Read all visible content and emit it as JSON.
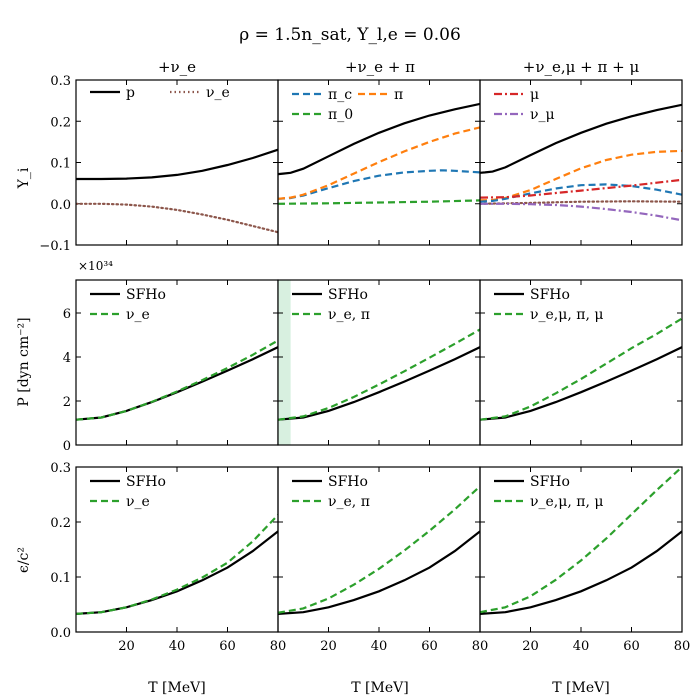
{
  "figure": {
    "title": "ρ = 1.5n_sat, Y_l,e = 0.06",
    "columns": [
      "+ν_e",
      "+ν_e + π",
      "+ν_e,μ + π + μ"
    ],
    "x_label": "T [MeV]",
    "row_labels": [
      "Y_i",
      "P [dyn cm⁻²]",
      "ϵ/c²"
    ],
    "pressure_multiplier": "×10³⁴",
    "highlight_band_T": [
      0,
      5
    ],
    "colors": {
      "black": "#000000",
      "orange": "#ff7f0e",
      "blue": "#1f77b4",
      "green": "#2ca02c",
      "red": "#d62728",
      "purple": "#9467bd",
      "brown": "#8c564b",
      "band": "#d8f0e0"
    }
  },
  "chart_data": [
    {
      "type": "line",
      "panel": "Y_i | +ν_e",
      "xlim": [
        0,
        80
      ],
      "ylim": [
        -0.1,
        0.3
      ],
      "yticks": [
        "−0.1",
        "0.0",
        "0.1",
        "0.2",
        "0.3"
      ],
      "xticks": [
        "20",
        "40",
        "60",
        "80"
      ],
      "legend": "top-left",
      "series": [
        {
          "name": "p",
          "color": "#000000",
          "dash": "solid",
          "x": [
            0,
            10,
            20,
            30,
            40,
            50,
            60,
            70,
            80
          ],
          "y": [
            0.06,
            0.06,
            0.061,
            0.064,
            0.07,
            0.08,
            0.094,
            0.111,
            0.131
          ]
        },
        {
          "name": "ν_e",
          "color": "#8c564b",
          "dash": "dotted",
          "x": [
            0,
            10,
            20,
            30,
            40,
            50,
            60,
            70,
            80
          ],
          "y": [
            0.0,
            0.0,
            -0.002,
            -0.007,
            -0.015,
            -0.026,
            -0.039,
            -0.054,
            -0.069
          ]
        }
      ]
    },
    {
      "type": "line",
      "panel": "Y_i | +ν_e + π",
      "xlim": [
        0,
        80
      ],
      "ylim": [
        -0.1,
        0.3
      ],
      "yticks": [],
      "xticks": [
        "20",
        "40",
        "60",
        "80"
      ],
      "legend": "top-left",
      "series": [
        {
          "name": "",
          "color": "#000000",
          "dash": "solid",
          "x": [
            0,
            2,
            5,
            10,
            20,
            30,
            40,
            50,
            60,
            70,
            80
          ],
          "y": [
            0.072,
            0.073,
            0.075,
            0.085,
            0.115,
            0.145,
            0.172,
            0.195,
            0.214,
            0.229,
            0.242
          ]
        },
        {
          "name": "π_c",
          "color": "#1f77b4",
          "dash": "dashed",
          "x": [
            0,
            5,
            10,
            20,
            30,
            40,
            50,
            60,
            65,
            70,
            80
          ],
          "y": [
            0.012,
            0.014,
            0.02,
            0.038,
            0.055,
            0.068,
            0.076,
            0.08,
            0.081,
            0.08,
            0.076
          ]
        },
        {
          "name": "π",
          "color": "#ff7f0e",
          "dash": "dashed",
          "x": [
            0,
            5,
            10,
            20,
            30,
            40,
            50,
            60,
            70,
            80
          ],
          "y": [
            0.012,
            0.015,
            0.022,
            0.045,
            0.073,
            0.101,
            0.127,
            0.15,
            0.17,
            0.185
          ]
        },
        {
          "name": "π_0",
          "color": "#2ca02c",
          "dash": "dashed",
          "x": [
            0,
            20,
            40,
            60,
            80
          ],
          "y": [
            0.0,
            0.001,
            0.003,
            0.005,
            0.008
          ]
        }
      ]
    },
    {
      "type": "line",
      "panel": "Y_i | +ν_e,μ + π + μ",
      "xlim": [
        0,
        80
      ],
      "ylim": [
        -0.1,
        0.3
      ],
      "yticks": [],
      "xticks": [
        "20",
        "40",
        "60",
        "80"
      ],
      "legend": "top-left",
      "series": [
        {
          "name": "",
          "color": "#000000",
          "dash": "solid",
          "x": [
            0,
            2,
            5,
            10,
            20,
            30,
            40,
            50,
            60,
            70,
            80
          ],
          "y": [
            0.075,
            0.076,
            0.078,
            0.088,
            0.118,
            0.147,
            0.172,
            0.194,
            0.212,
            0.227,
            0.24
          ]
        },
        {
          "name": "",
          "color": "#ff7f0e",
          "dash": "dashed",
          "x": [
            0,
            5,
            10,
            20,
            30,
            40,
            50,
            60,
            70,
            80
          ],
          "y": [
            0.008,
            0.009,
            0.014,
            0.033,
            0.06,
            0.086,
            0.106,
            0.119,
            0.126,
            0.128
          ]
        },
        {
          "name": "",
          "color": "#1f77b4",
          "dash": "dashed",
          "x": [
            0,
            5,
            10,
            20,
            30,
            40,
            50,
            60,
            70,
            80
          ],
          "y": [
            0.005,
            0.007,
            0.012,
            0.025,
            0.037,
            0.045,
            0.047,
            0.043,
            0.034,
            0.022
          ]
        },
        {
          "name": "μ",
          "color": "#d62728",
          "dash": "dashdot",
          "x": [
            0,
            10,
            20,
            30,
            40,
            50,
            60,
            70,
            80
          ],
          "y": [
            0.015,
            0.016,
            0.02,
            0.026,
            0.032,
            0.038,
            0.044,
            0.051,
            0.058
          ]
        },
        {
          "name": "",
          "color": "#8c564b",
          "dash": "dotted",
          "x": [
            0,
            20,
            40,
            60,
            80
          ],
          "y": [
            0.0,
            0.002,
            0.005,
            0.006,
            0.005
          ]
        },
        {
          "name": "ν_μ",
          "color": "#9467bd",
          "dash": "dashdot",
          "x": [
            0,
            10,
            20,
            30,
            40,
            50,
            60,
            70,
            80
          ],
          "y": [
            0.0,
            0.0,
            -0.001,
            -0.003,
            -0.007,
            -0.013,
            -0.02,
            -0.029,
            -0.04
          ]
        }
      ]
    },
    {
      "type": "line",
      "panel": "P | +ν_e",
      "xlim": [
        0,
        80
      ],
      "ylim": [
        0,
        7.5
      ],
      "yticks": [
        "0",
        "2",
        "4",
        "6"
      ],
      "xticks": [
        "20",
        "40",
        "60",
        "80"
      ],
      "legend": "top-left",
      "series": [
        {
          "name": "SFHo",
          "color": "#000000",
          "dash": "solid",
          "x": [
            0,
            10,
            20,
            30,
            40,
            50,
            60,
            70,
            80
          ],
          "y": [
            1.15,
            1.25,
            1.55,
            1.95,
            2.4,
            2.88,
            3.38,
            3.9,
            4.45
          ]
        },
        {
          "name": "ν_e",
          "color": "#2ca02c",
          "dash": "dashed",
          "x": [
            0,
            10,
            20,
            30,
            40,
            50,
            60,
            70,
            80
          ],
          "y": [
            1.15,
            1.25,
            1.55,
            1.96,
            2.43,
            2.95,
            3.5,
            4.1,
            4.75
          ]
        }
      ]
    },
    {
      "type": "line",
      "panel": "P | +ν_e + π",
      "xlim": [
        0,
        80
      ],
      "ylim": [
        0,
        7.5
      ],
      "yticks": [],
      "xticks": [
        "20",
        "40",
        "60",
        "80"
      ],
      "legend": "top-left",
      "series": [
        {
          "name": "SFHo",
          "color": "#000000",
          "dash": "solid",
          "x": [
            0,
            10,
            20,
            30,
            40,
            50,
            60,
            70,
            80
          ],
          "y": [
            1.15,
            1.25,
            1.55,
            1.95,
            2.4,
            2.88,
            3.38,
            3.9,
            4.45
          ]
        },
        {
          "name": "ν_e, π",
          "color": "#2ca02c",
          "dash": "dashed",
          "x": [
            0,
            10,
            20,
            30,
            40,
            50,
            60,
            70,
            80
          ],
          "y": [
            1.15,
            1.3,
            1.68,
            2.18,
            2.75,
            3.35,
            3.97,
            4.6,
            5.25
          ]
        }
      ]
    },
    {
      "type": "line",
      "panel": "P | +ν_e,μ + π + μ",
      "xlim": [
        0,
        80
      ],
      "ylim": [
        0,
        7.5
      ],
      "yticks": [],
      "xticks": [
        "20",
        "40",
        "60",
        "80"
      ],
      "legend": "top-left",
      "series": [
        {
          "name": "SFHo",
          "color": "#000000",
          "dash": "solid",
          "x": [
            0,
            10,
            20,
            30,
            40,
            50,
            60,
            70,
            80
          ],
          "y": [
            1.15,
            1.25,
            1.55,
            1.95,
            2.4,
            2.88,
            3.38,
            3.9,
            4.45
          ]
        },
        {
          "name": "ν_e,μ, π, μ",
          "color": "#2ca02c",
          "dash": "dashed",
          "x": [
            0,
            10,
            20,
            30,
            40,
            50,
            60,
            70,
            80
          ],
          "y": [
            1.15,
            1.3,
            1.75,
            2.35,
            3.0,
            3.7,
            4.4,
            5.05,
            5.75
          ]
        }
      ]
    },
    {
      "type": "line",
      "panel": "ϵ/c² | +ν_e",
      "xlim": [
        0,
        80
      ],
      "ylim": [
        0,
        0.3
      ],
      "yticks": [
        "0.0",
        "0.1",
        "0.2",
        "0.3"
      ],
      "xticks": [
        "20",
        "40",
        "60",
        "80"
      ],
      "legend": "top-left",
      "series": [
        {
          "name": "SFHo",
          "color": "#000000",
          "dash": "solid",
          "x": [
            0,
            10,
            20,
            30,
            40,
            50,
            60,
            70,
            80
          ],
          "y": [
            0.033,
            0.036,
            0.045,
            0.058,
            0.074,
            0.094,
            0.117,
            0.147,
            0.183
          ]
        },
        {
          "name": "ν_e",
          "color": "#2ca02c",
          "dash": "dashed",
          "x": [
            0,
            10,
            20,
            30,
            40,
            50,
            60,
            70,
            80
          ],
          "y": [
            0.033,
            0.036,
            0.045,
            0.059,
            0.077,
            0.099,
            0.126,
            0.165,
            0.213
          ]
        }
      ]
    },
    {
      "type": "line",
      "panel": "ϵ/c² | +ν_e + π",
      "xlim": [
        0,
        80
      ],
      "ylim": [
        0,
        0.3
      ],
      "yticks": [],
      "xticks": [
        "20",
        "40",
        "60",
        "80"
      ],
      "legend": "top-left",
      "series": [
        {
          "name": "SFHo",
          "color": "#000000",
          "dash": "solid",
          "x": [
            0,
            10,
            20,
            30,
            40,
            50,
            60,
            70,
            80
          ],
          "y": [
            0.033,
            0.036,
            0.045,
            0.058,
            0.074,
            0.094,
            0.117,
            0.147,
            0.183
          ]
        },
        {
          "name": "ν_e, π",
          "color": "#2ca02c",
          "dash": "dashed",
          "x": [
            0,
            10,
            20,
            30,
            40,
            50,
            60,
            70,
            80
          ],
          "y": [
            0.035,
            0.043,
            0.061,
            0.086,
            0.115,
            0.148,
            0.184,
            0.223,
            0.265
          ]
        }
      ]
    },
    {
      "type": "line",
      "panel": "ϵ/c² | +ν_e,μ + π + μ",
      "xlim": [
        0,
        80
      ],
      "ylim": [
        0,
        0.3
      ],
      "yticks": [],
      "xticks": [
        "20",
        "40",
        "60",
        "80"
      ],
      "legend": "top-left",
      "series": [
        {
          "name": "SFHo",
          "color": "#000000",
          "dash": "solid",
          "x": [
            0,
            10,
            20,
            30,
            40,
            50,
            60,
            70,
            80
          ],
          "y": [
            0.033,
            0.036,
            0.045,
            0.058,
            0.074,
            0.094,
            0.117,
            0.147,
            0.183
          ]
        },
        {
          "name": "ν_e,μ, π, μ",
          "color": "#2ca02c",
          "dash": "dashed",
          "x": [
            0,
            10,
            20,
            30,
            40,
            50,
            60,
            70,
            80
          ],
          "y": [
            0.036,
            0.045,
            0.065,
            0.095,
            0.13,
            0.17,
            0.214,
            0.258,
            0.3
          ]
        }
      ]
    }
  ]
}
